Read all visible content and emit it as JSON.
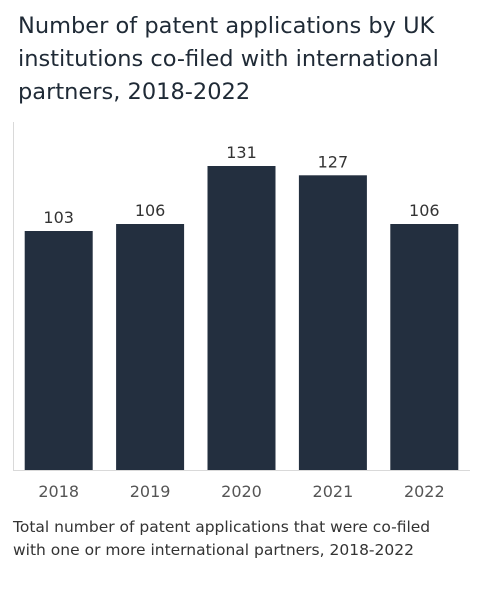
{
  "chart_data": {
    "type": "bar",
    "title": "Number of patent applications by UK institutions co-filed with international partners, 2018-2022",
    "categories": [
      "2018",
      "2019",
      "2020",
      "2021",
      "2022"
    ],
    "values": [
      103,
      106,
      131,
      127,
      106
    ],
    "data_labels": [
      "103",
      "106",
      "131",
      "127",
      "106"
    ],
    "xlabel": "",
    "ylabel": "",
    "ylim": [
      0,
      131
    ],
    "grid": false,
    "bar_color": "#232f3f",
    "axis_color": "#d9d9d9"
  },
  "caption": "Total number of patent applications that were co-filed with one or more international partners, 2018-2022"
}
